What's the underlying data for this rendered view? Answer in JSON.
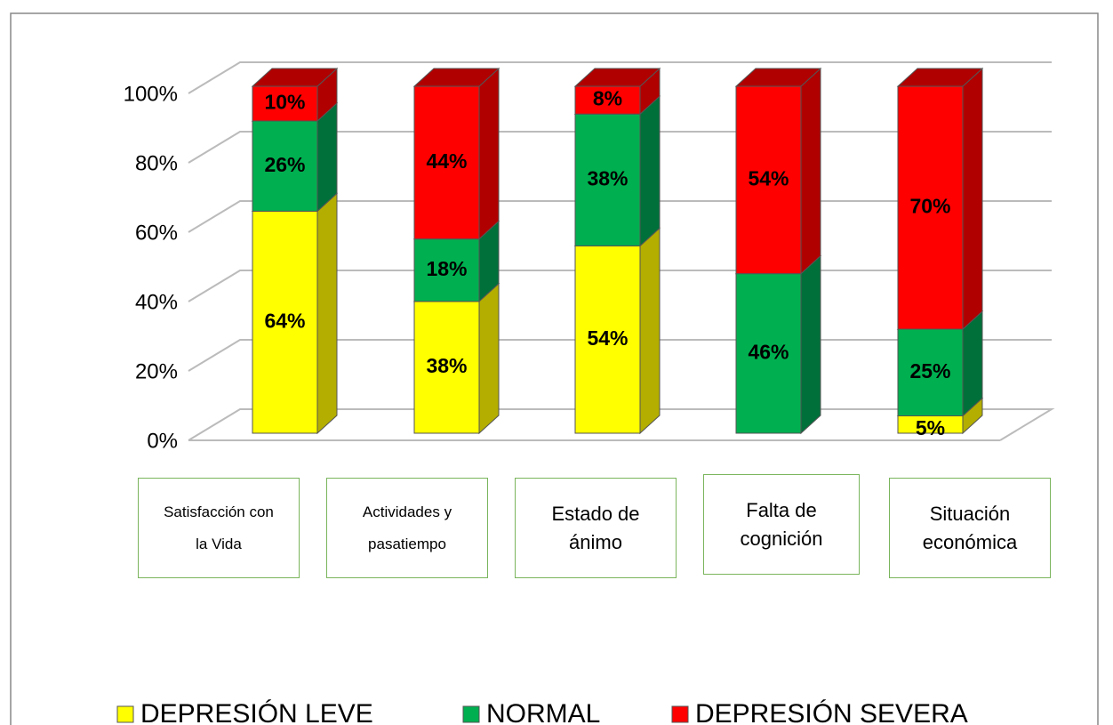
{
  "chart_data": {
    "type": "stacked-bar-3d",
    "categories": [
      "Satisfacción con la Vida",
      "Actividades y pasatiempo",
      "Estado de ánimo",
      "Falta de cognición",
      "Situación económica"
    ],
    "series": [
      {
        "name": "DEPRESIÓN LEVE",
        "color": "#ffff00",
        "side_color": "#b3ae00",
        "values": [
          64,
          38,
          54,
          null,
          5
        ],
        "value_labels": [
          "64%",
          "38%",
          "54%",
          null,
          "5%"
        ]
      },
      {
        "name": "NORMAL",
        "color": "#00b050",
        "side_color": "#00703a",
        "values": [
          26,
          18,
          38,
          46,
          25
        ],
        "value_labels": [
          "26%",
          "18%",
          "38%",
          "46%",
          "25%"
        ]
      },
      {
        "name": "DEPRESIÓN SEVERA",
        "color": "#ff0000",
        "side_color": "#b00000",
        "values": [
          10,
          44,
          8,
          54,
          70
        ],
        "value_labels": [
          "10%",
          "44%",
          "8%",
          "54%",
          "70%"
        ]
      }
    ],
    "ylim": [
      0,
      100
    ],
    "yticks": [
      {
        "value": 0,
        "label": "0%"
      },
      {
        "value": 20,
        "label": "20%"
      },
      {
        "value": 40,
        "label": "40%"
      },
      {
        "value": 60,
        "label": "60%"
      },
      {
        "value": 80,
        "label": "80%"
      },
      {
        "value": 100,
        "label": "100%"
      }
    ],
    "grid": true,
    "legend": "bottom"
  }
}
